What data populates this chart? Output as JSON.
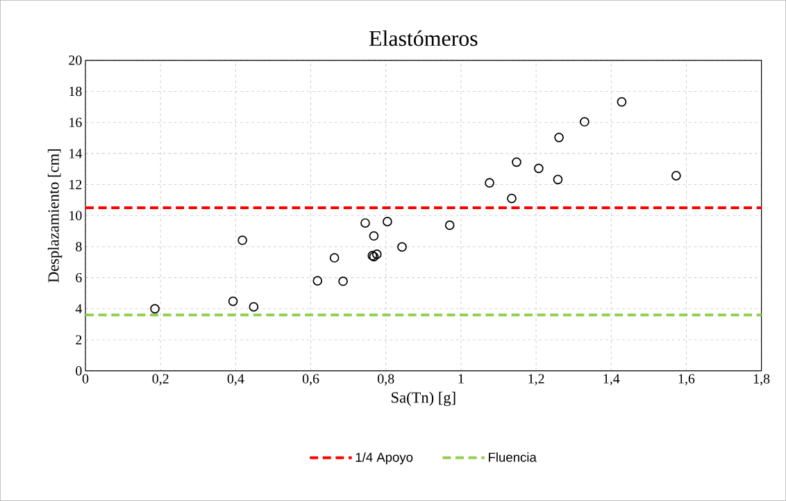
{
  "chart_data": {
    "type": "scatter",
    "title": "Elastómeros",
    "xlabel": "Sa(Tn) [g]",
    "ylabel": "Desplazamiento [cm]",
    "x": [
      0.185,
      0.393,
      0.418,
      0.448,
      0.618,
      0.663,
      0.686,
      0.745,
      0.768,
      0.764,
      0.768,
      0.776,
      0.804,
      0.843,
      0.97,
      1.076,
      1.135,
      1.148,
      1.207,
      1.258,
      1.261,
      1.329,
      1.428,
      1.573
    ],
    "values": [
      4.0,
      4.48,
      8.41,
      4.12,
      5.8,
      7.28,
      5.77,
      9.52,
      8.69,
      7.42,
      7.35,
      7.51,
      9.61,
      7.98,
      9.38,
      12.11,
      11.1,
      13.44,
      13.04,
      12.32,
      15.03,
      16.04,
      17.32,
      12.57
    ],
    "color": "#000000",
    "marker": "circle",
    "xlim": [
      0,
      1.8
    ],
    "xticks": [
      0,
      {
        "value": 0.2,
        "label": "0,2"
      },
      {
        "value": 0.4,
        "label": "0,4"
      },
      {
        "value": 0.6,
        "label": "0,6"
      },
      {
        "value": 0.8,
        "label": "0,8"
      },
      1,
      {
        "value": 1.2,
        "label": "1,2"
      },
      {
        "value": 1.4,
        "label": "1,4"
      },
      {
        "value": 1.6,
        "label": "1,6"
      },
      {
        "value": 1.8,
        "label": "1,8"
      }
    ],
    "ylim": [
      0,
      20
    ],
    "yticks": [
      0,
      2,
      4,
      6,
      8,
      10,
      12,
      14,
      16,
      18,
      20
    ],
    "ref_lines": [
      {
        "axis": "y",
        "value": 10.5,
        "label": "1/4 Apoyo",
        "color": "#ff0000",
        "line_style": "dashed"
      },
      {
        "axis": "y",
        "value": 3.6,
        "label": "Fluencia",
        "color": "#92d050",
        "line_style": "dashed"
      }
    ],
    "grid": true,
    "legend": "bottom"
  }
}
